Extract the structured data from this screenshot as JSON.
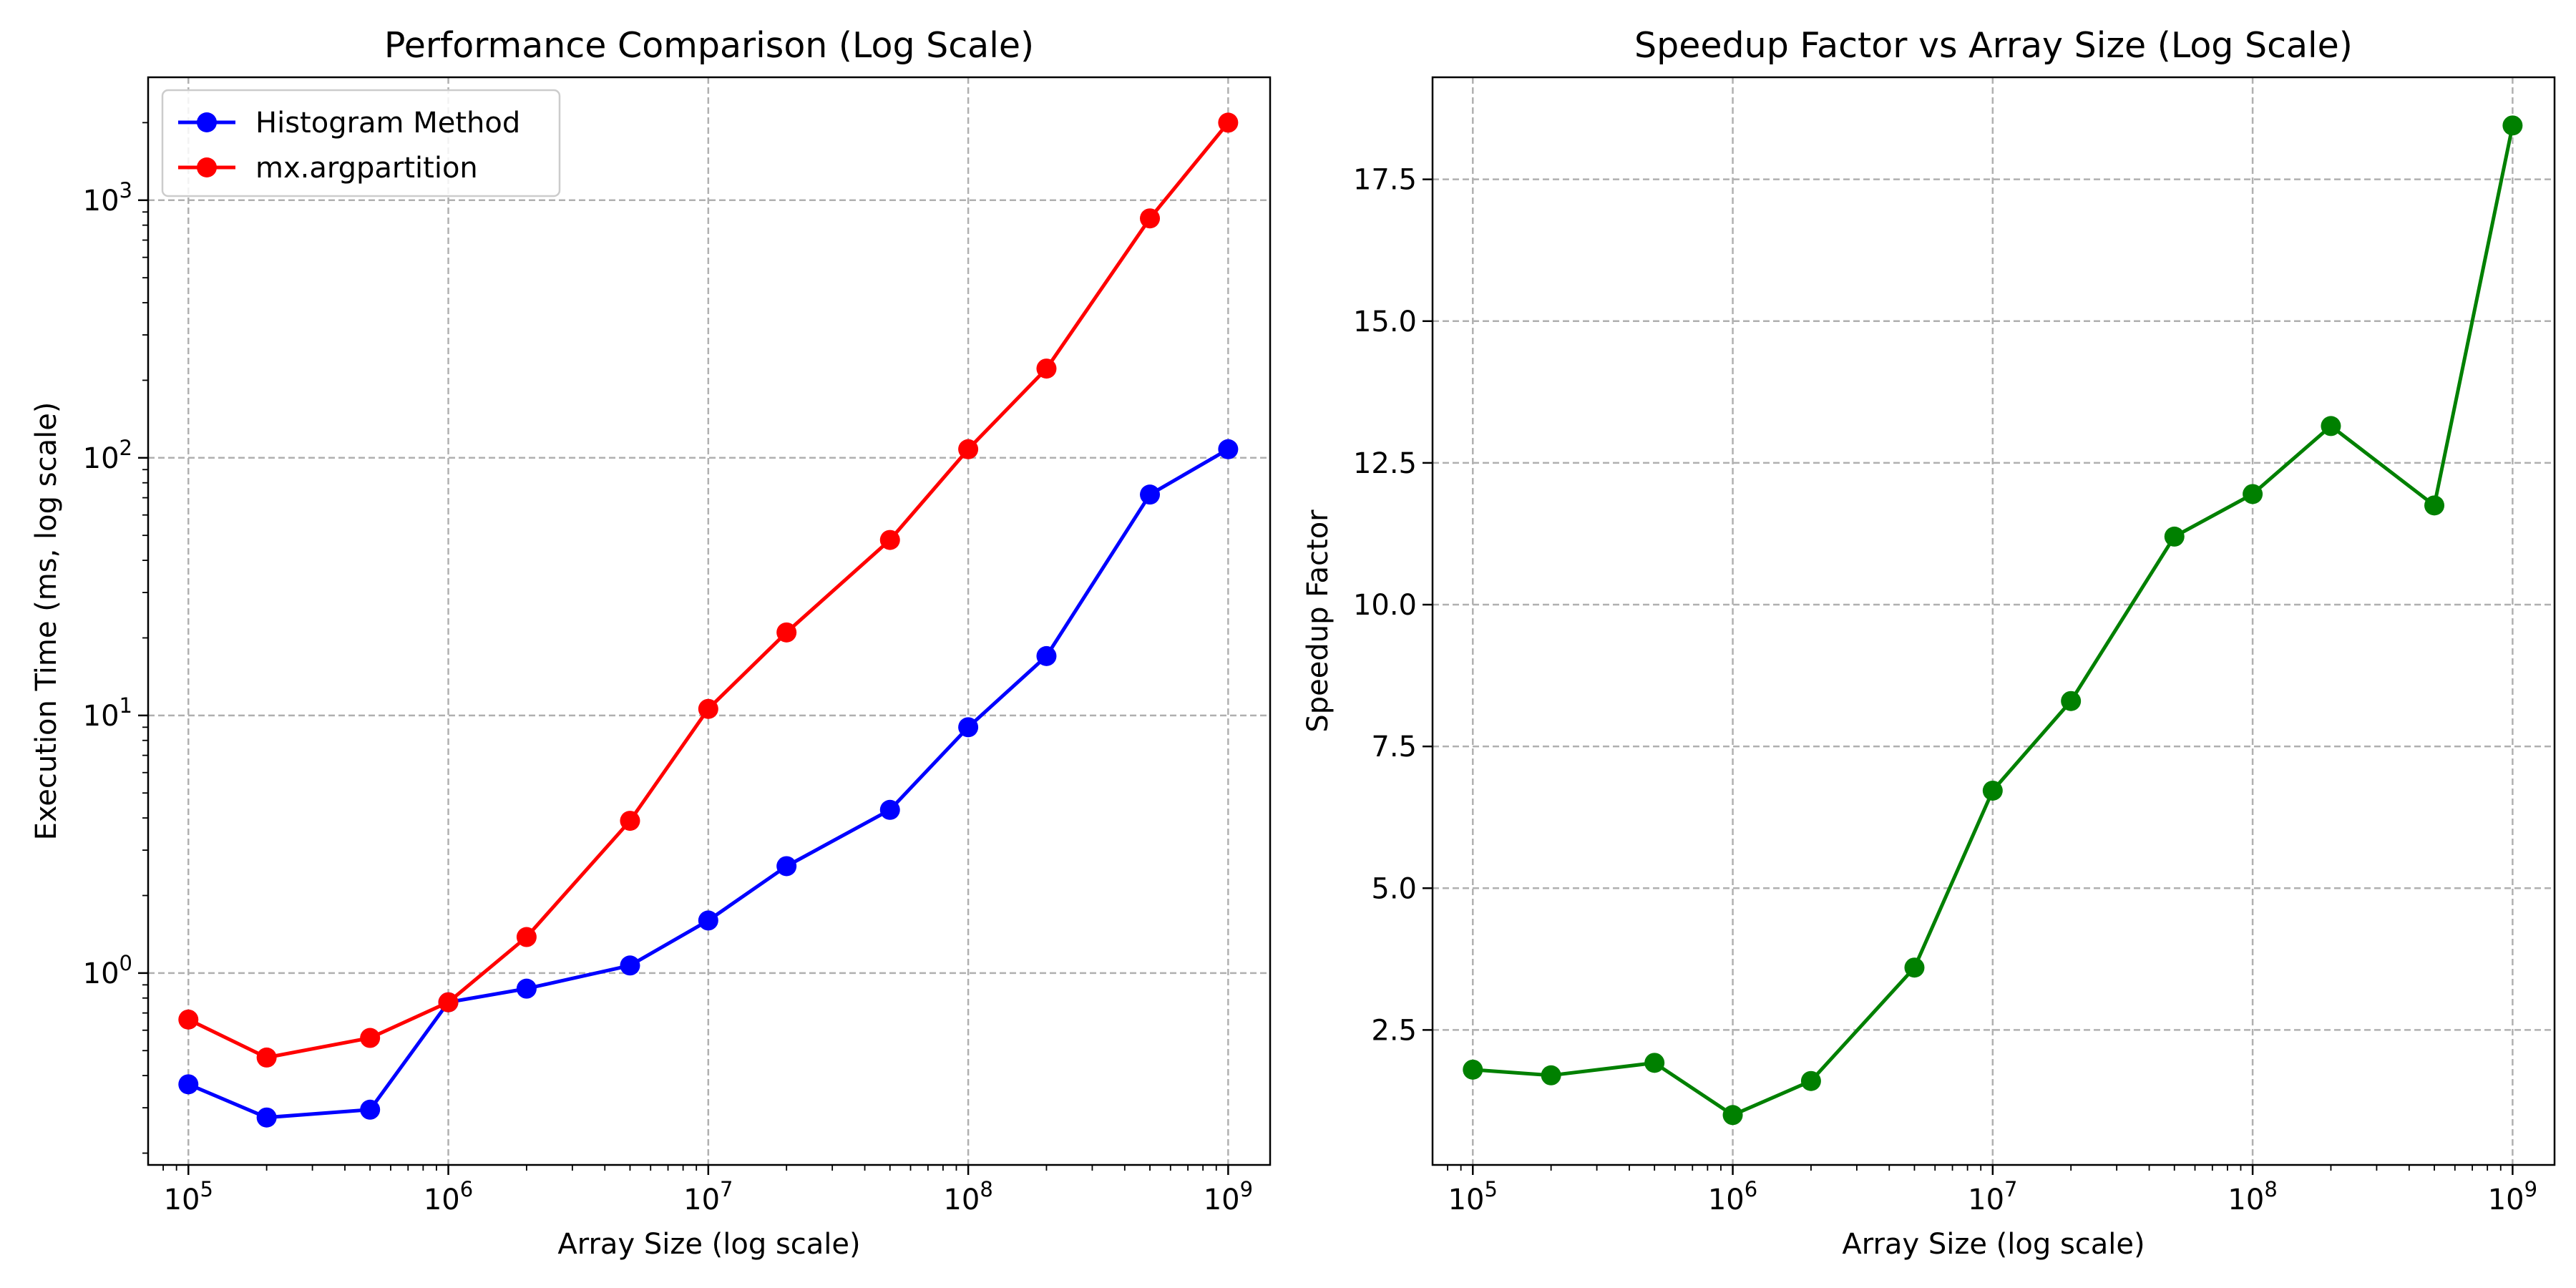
{
  "chart_data": [
    {
      "type": "line",
      "title": "Performance Comparison (Log Scale)",
      "xlabel": "Array Size (log scale)",
      "ylabel": "Execution Time (ms, log scale)",
      "xscale": "log",
      "yscale": "log",
      "xlim": [
        70000,
        1450000000
      ],
      "ylim": [
        0.18,
        3000
      ],
      "grid": true,
      "legend": "top-left",
      "x": [
        100000,
        200000,
        500000,
        1000000,
        2000000,
        5000000,
        10000000,
        20000000,
        50000000,
        100000000,
        200000000,
        500000000,
        1000000000
      ],
      "xticks": [
        {
          "base": "10",
          "exp": "5",
          "value": 100000
        },
        {
          "base": "10",
          "exp": "6",
          "value": 1000000
        },
        {
          "base": "10",
          "exp": "7",
          "value": 10000000
        },
        {
          "base": "10",
          "exp": "8",
          "value": 100000000
        },
        {
          "base": "10",
          "exp": "9",
          "value": 1000000000
        }
      ],
      "yticks": [
        {
          "base": "10",
          "exp": "0",
          "value": 1
        },
        {
          "base": "10",
          "exp": "1",
          "value": 10
        },
        {
          "base": "10",
          "exp": "2",
          "value": 100
        },
        {
          "base": "10",
          "exp": "3",
          "value": 1000
        }
      ],
      "series": [
        {
          "name": "Histogram Method",
          "color": "#0000ff",
          "values": [
            0.37,
            0.275,
            0.295,
            0.77,
            0.87,
            1.07,
            1.6,
            2.6,
            4.3,
            9.0,
            17.0,
            72,
            108
          ]
        },
        {
          "name": "mx.argpartition",
          "color": "#ff0000",
          "values": [
            0.66,
            0.47,
            0.56,
            0.77,
            1.38,
            3.9,
            10.6,
            21,
            48,
            108,
            222,
            850,
            2000
          ]
        }
      ]
    },
    {
      "type": "line",
      "title": "Speedup Factor vs Array Size (Log Scale)",
      "xlabel": "Array Size (log scale)",
      "ylabel": "Speedup Factor",
      "xscale": "log",
      "yscale": "linear",
      "xlim": [
        70000,
        1450000000
      ],
      "ylim": [
        0.12,
        19.3
      ],
      "grid": true,
      "x": [
        100000,
        200000,
        500000,
        1000000,
        2000000,
        5000000,
        10000000,
        20000000,
        50000000,
        100000000,
        200000000,
        500000000,
        1000000000
      ],
      "xticks": [
        {
          "base": "10",
          "exp": "5",
          "value": 100000
        },
        {
          "base": "10",
          "exp": "6",
          "value": 1000000
        },
        {
          "base": "10",
          "exp": "7",
          "value": 10000000
        },
        {
          "base": "10",
          "exp": "8",
          "value": 100000000
        },
        {
          "base": "10",
          "exp": "9",
          "value": 1000000000
        }
      ],
      "yticks": [
        {
          "label": "2.5",
          "value": 2.5
        },
        {
          "label": "5.0",
          "value": 5.0
        },
        {
          "label": "7.5",
          "value": 7.5
        },
        {
          "label": "10.0",
          "value": 10.0
        },
        {
          "label": "12.5",
          "value": 12.5
        },
        {
          "label": "15.0",
          "value": 15.0
        },
        {
          "label": "17.5",
          "value": 17.5
        }
      ],
      "series": [
        {
          "color": "#008000",
          "values": [
            1.8,
            1.7,
            1.92,
            1.0,
            1.6,
            3.6,
            6.72,
            8.3,
            11.2,
            11.95,
            13.15,
            11.75,
            18.45
          ]
        }
      ]
    }
  ]
}
